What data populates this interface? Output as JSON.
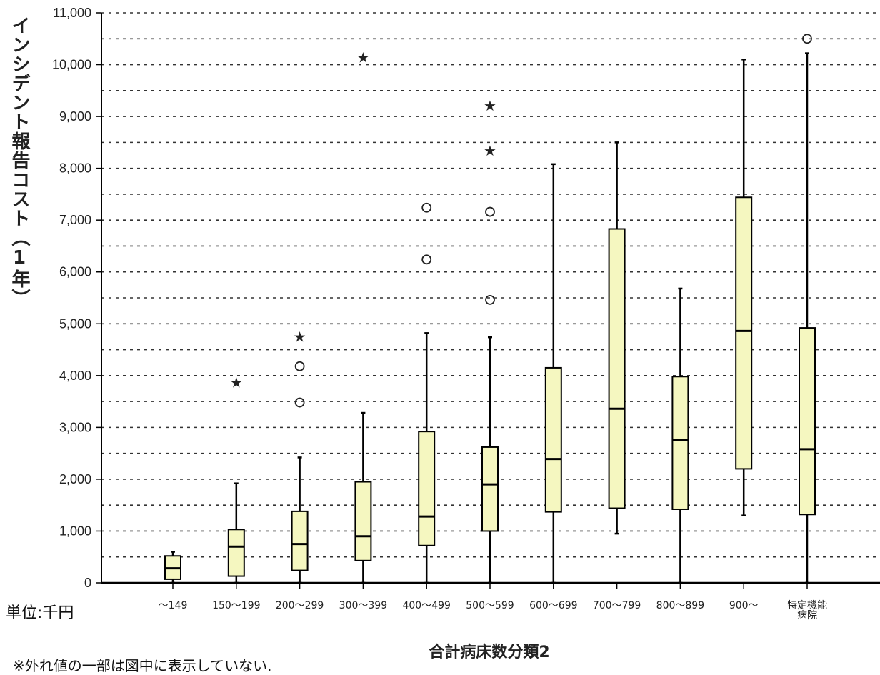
{
  "chart_data": {
    "type": "boxplot",
    "ylabel": "インシデント報告コスト（1年）",
    "xlabel": "合計病床数分類2",
    "unit_label": "単位:千円",
    "footnote": "※外れ値の一部は図中に表示していない.",
    "ylim": [
      0,
      11000
    ],
    "yticks": [
      0,
      1000,
      2000,
      3000,
      4000,
      5000,
      6000,
      7000,
      8000,
      9000,
      10000,
      11000
    ],
    "ytick_labels": [
      "0",
      "1,000",
      "2,000",
      "3,000",
      "4,000",
      "5,000",
      "6,000",
      "7,000",
      "8,000",
      "9,000",
      "10,000",
      "11,000"
    ],
    "grid": "dotted horizontal every 500",
    "box_color": "#f5f7c0",
    "categories": [
      {
        "label": [
          "～149"
        ],
        "min": 0,
        "q1": 70,
        "median": 280,
        "q3": 520,
        "max": 600,
        "outliers": [],
        "extremes": []
      },
      {
        "label": [
          "150～199"
        ],
        "min": 0,
        "q1": 130,
        "median": 700,
        "q3": 1030,
        "max": 1920,
        "outliers": [],
        "extremes": [
          3880
        ]
      },
      {
        "label": [
          "200～299"
        ],
        "min": 0,
        "q1": 240,
        "median": 750,
        "q3": 1380,
        "max": 2420,
        "outliers": [
          3480,
          4180
        ],
        "extremes": [
          4760
        ]
      },
      {
        "label": [
          "300～399"
        ],
        "min": 0,
        "q1": 430,
        "median": 900,
        "q3": 1950,
        "max": 3280,
        "outliers": [],
        "extremes": [
          10150
        ]
      },
      {
        "label": [
          "400～499"
        ],
        "min": 0,
        "q1": 720,
        "median": 1280,
        "q3": 2920,
        "max": 4820,
        "outliers": [
          6240,
          7240
        ],
        "extremes": []
      },
      {
        "label": [
          "500～599"
        ],
        "min": 0,
        "q1": 1000,
        "median": 1900,
        "q3": 2620,
        "max": 4740,
        "outliers": [
          5460,
          7160
        ],
        "extremes": [
          8350,
          9220
        ]
      },
      {
        "label": [
          "600～699"
        ],
        "min": 0,
        "q1": 1370,
        "median": 2390,
        "q3": 4150,
        "max": 8080,
        "outliers": [],
        "extremes": []
      },
      {
        "label": [
          "700～799"
        ],
        "min": 950,
        "q1": 1440,
        "median": 3360,
        "q3": 6830,
        "max": 8500,
        "outliers": [],
        "extremes": []
      },
      {
        "label": [
          "800～899"
        ],
        "min": 0,
        "q1": 1420,
        "median": 2750,
        "q3": 3980,
        "max": 5680,
        "outliers": [],
        "extremes": []
      },
      {
        "label": [
          "900～"
        ],
        "min": 1300,
        "q1": 2200,
        "median": 4860,
        "q3": 7440,
        "max": 10100,
        "outliers": [],
        "extremes": []
      },
      {
        "label": [
          "特定機能",
          "病院"
        ],
        "min": 0,
        "q1": 1320,
        "median": 2580,
        "q3": 4920,
        "max": 10220,
        "outliers": [
          10500
        ],
        "extremes": []
      }
    ]
  }
}
